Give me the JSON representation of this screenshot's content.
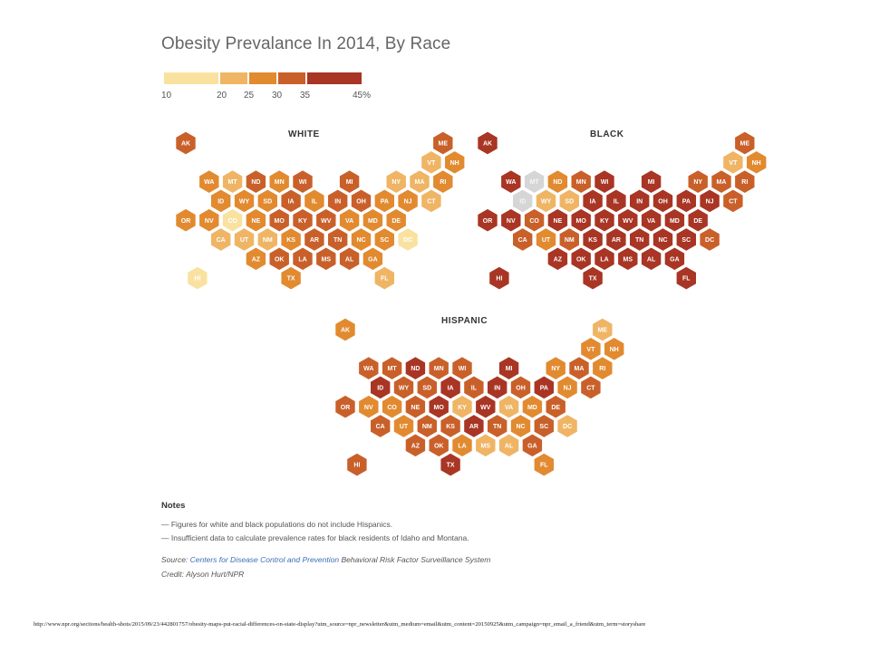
{
  "title": "Obesity Prevalance In 2014, By Race",
  "legend": {
    "colors": [
      "#f9e2a0",
      "#efb565",
      "#e28a30",
      "#c9602a",
      "#a93524"
    ],
    "breaks": [
      10,
      20,
      25,
      30,
      35,
      45
    ],
    "labels": [
      "10",
      "20",
      "25",
      "30",
      "35",
      "45%"
    ]
  },
  "no_data_color": "#d6d6d6",
  "layout": [
    [
      "AK",
      0,
      0
    ],
    [
      "ME",
      11,
      0
    ],
    [
      "VT",
      10,
      1
    ],
    [
      "NH",
      11,
      1
    ],
    [
      "WA",
      1,
      2
    ],
    [
      "MT",
      2,
      2
    ],
    [
      "ND",
      3,
      2
    ],
    [
      "MN",
      4,
      2
    ],
    [
      "WI",
      5,
      2
    ],
    [
      "MI",
      7,
      2
    ],
    [
      "NY",
      9,
      2
    ],
    [
      "MA",
      10,
      2
    ],
    [
      "RI",
      11,
      2
    ],
    [
      "ID",
      1,
      3
    ],
    [
      "WY",
      2,
      3
    ],
    [
      "SD",
      3,
      3
    ],
    [
      "IA",
      4,
      3
    ],
    [
      "IL",
      5,
      3
    ],
    [
      "IN",
      6,
      3
    ],
    [
      "OH",
      7,
      3
    ],
    [
      "PA",
      8,
      3
    ],
    [
      "NJ",
      9,
      3
    ],
    [
      "CT",
      10,
      3
    ],
    [
      "OR",
      0,
      4
    ],
    [
      "NV",
      1,
      4
    ],
    [
      "CO",
      2,
      4
    ],
    [
      "NE",
      3,
      4
    ],
    [
      "MO",
      4,
      4
    ],
    [
      "KY",
      5,
      4
    ],
    [
      "WV",
      6,
      4
    ],
    [
      "VA",
      7,
      4
    ],
    [
      "MD",
      8,
      4
    ],
    [
      "DE",
      9,
      4
    ],
    [
      "CA",
      1,
      5
    ],
    [
      "UT",
      2,
      5
    ],
    [
      "NM",
      3,
      5
    ],
    [
      "KS",
      4,
      5
    ],
    [
      "AR",
      5,
      5
    ],
    [
      "TN",
      6,
      5
    ],
    [
      "NC",
      7,
      5
    ],
    [
      "SC",
      8,
      5
    ],
    [
      "DC",
      9,
      5
    ],
    [
      "AZ",
      3,
      6
    ],
    [
      "OK",
      4,
      6
    ],
    [
      "LA",
      5,
      6
    ],
    [
      "MS",
      6,
      6
    ],
    [
      "AL",
      7,
      6
    ],
    [
      "GA",
      8,
      6
    ],
    [
      "HI",
      0,
      7
    ],
    [
      "TX",
      4,
      7
    ],
    [
      "FL",
      8,
      7
    ]
  ],
  "maps": [
    {
      "name": "WHITE",
      "levels": {
        "AK": 3,
        "ME": 3,
        "VT": 1,
        "NH": 2,
        "WA": 2,
        "MT": 1,
        "ND": 3,
        "MN": 2,
        "WI": 3,
        "MI": 3,
        "NY": 1,
        "MA": 1,
        "RI": 2,
        "ID": 2,
        "WY": 2,
        "SD": 2,
        "IA": 3,
        "IL": 2,
        "IN": 3,
        "OH": 3,
        "PA": 2,
        "NJ": 2,
        "CT": 1,
        "OR": 2,
        "NV": 2,
        "CO": 0,
        "NE": 2,
        "MO": 3,
        "KY": 3,
        "WV": 3,
        "VA": 2,
        "MD": 2,
        "DE": 2,
        "CA": 1,
        "UT": 1,
        "NM": 1,
        "KS": 2,
        "AR": 3,
        "TN": 3,
        "NC": 2,
        "SC": 2,
        "DC": 0,
        "AZ": 2,
        "OK": 3,
        "LA": 3,
        "MS": 3,
        "AL": 3,
        "GA": 2,
        "HI": 0,
        "TX": 2,
        "FL": 1
      }
    },
    {
      "name": "BLACK",
      "levels": {
        "AK": 4,
        "ME": 3,
        "VT": 1,
        "NH": 2,
        "WA": 4,
        "MT": null,
        "ND": 2,
        "MN": 3,
        "WI": 4,
        "MI": 4,
        "NY": 3,
        "MA": 3,
        "RI": 3,
        "ID": null,
        "WY": 1,
        "SD": 1,
        "IA": 4,
        "IL": 4,
        "IN": 4,
        "OH": 4,
        "PA": 4,
        "NJ": 4,
        "CT": 3,
        "OR": 4,
        "NV": 4,
        "CO": 3,
        "NE": 4,
        "MO": 4,
        "KY": 4,
        "WV": 4,
        "VA": 4,
        "MD": 4,
        "DE": 4,
        "CA": 3,
        "UT": 2,
        "NM": 3,
        "KS": 4,
        "AR": 4,
        "TN": 4,
        "NC": 4,
        "SC": 4,
        "DC": 3,
        "AZ": 4,
        "OK": 4,
        "LA": 4,
        "MS": 4,
        "AL": 4,
        "GA": 4,
        "HI": 4,
        "TX": 4,
        "FL": 4
      }
    },
    {
      "name": "HISPANIC",
      "levels": {
        "AK": 2,
        "ME": 1,
        "VT": 2,
        "NH": 2,
        "WA": 3,
        "MT": 3,
        "ND": 4,
        "MN": 3,
        "WI": 3,
        "MI": 4,
        "NY": 2,
        "MA": 3,
        "RI": 2,
        "ID": 4,
        "WY": 3,
        "SD": 3,
        "IA": 4,
        "IL": 3,
        "IN": 4,
        "OH": 3,
        "PA": 4,
        "NJ": 2,
        "CT": 3,
        "OR": 3,
        "NV": 2,
        "CO": 2,
        "NE": 3,
        "MO": 4,
        "KY": 1,
        "WV": 4,
        "VA": 1,
        "MD": 2,
        "DE": 3,
        "CA": 3,
        "UT": 2,
        "NM": 3,
        "KS": 3,
        "AR": 4,
        "TN": 3,
        "NC": 2,
        "SC": 3,
        "DC": 1,
        "AZ": 3,
        "OK": 3,
        "LA": 2,
        "MS": 1,
        "AL": 1,
        "GA": 3,
        "HI": 3,
        "TX": 4,
        "FL": 2
      }
    }
  ],
  "notes": {
    "heading": "Notes",
    "lines": [
      "— Figures for white and black populations do not include Hispanics.",
      "— Insufficient data to calculate prevalence rates for black residents of Idaho and Montana."
    ],
    "source_prefix": "Source: ",
    "source_link": "Centers for Disease Control and Prevention",
    "source_suffix": " Behavioral Risk Factor Surveillance System",
    "credit": "Credit: Alyson Hurt/NPR"
  },
  "url_text": "http://www.npr.org/sections/health-shots/2015/09/23/442801757/obesity-maps-put-racial-differences-on-state-display?utm_source=npr_newsletter&utm_medium=email&utm_content=20150925&utm_campaign=npr_email_a_friend&utm_term=storyshare"
}
